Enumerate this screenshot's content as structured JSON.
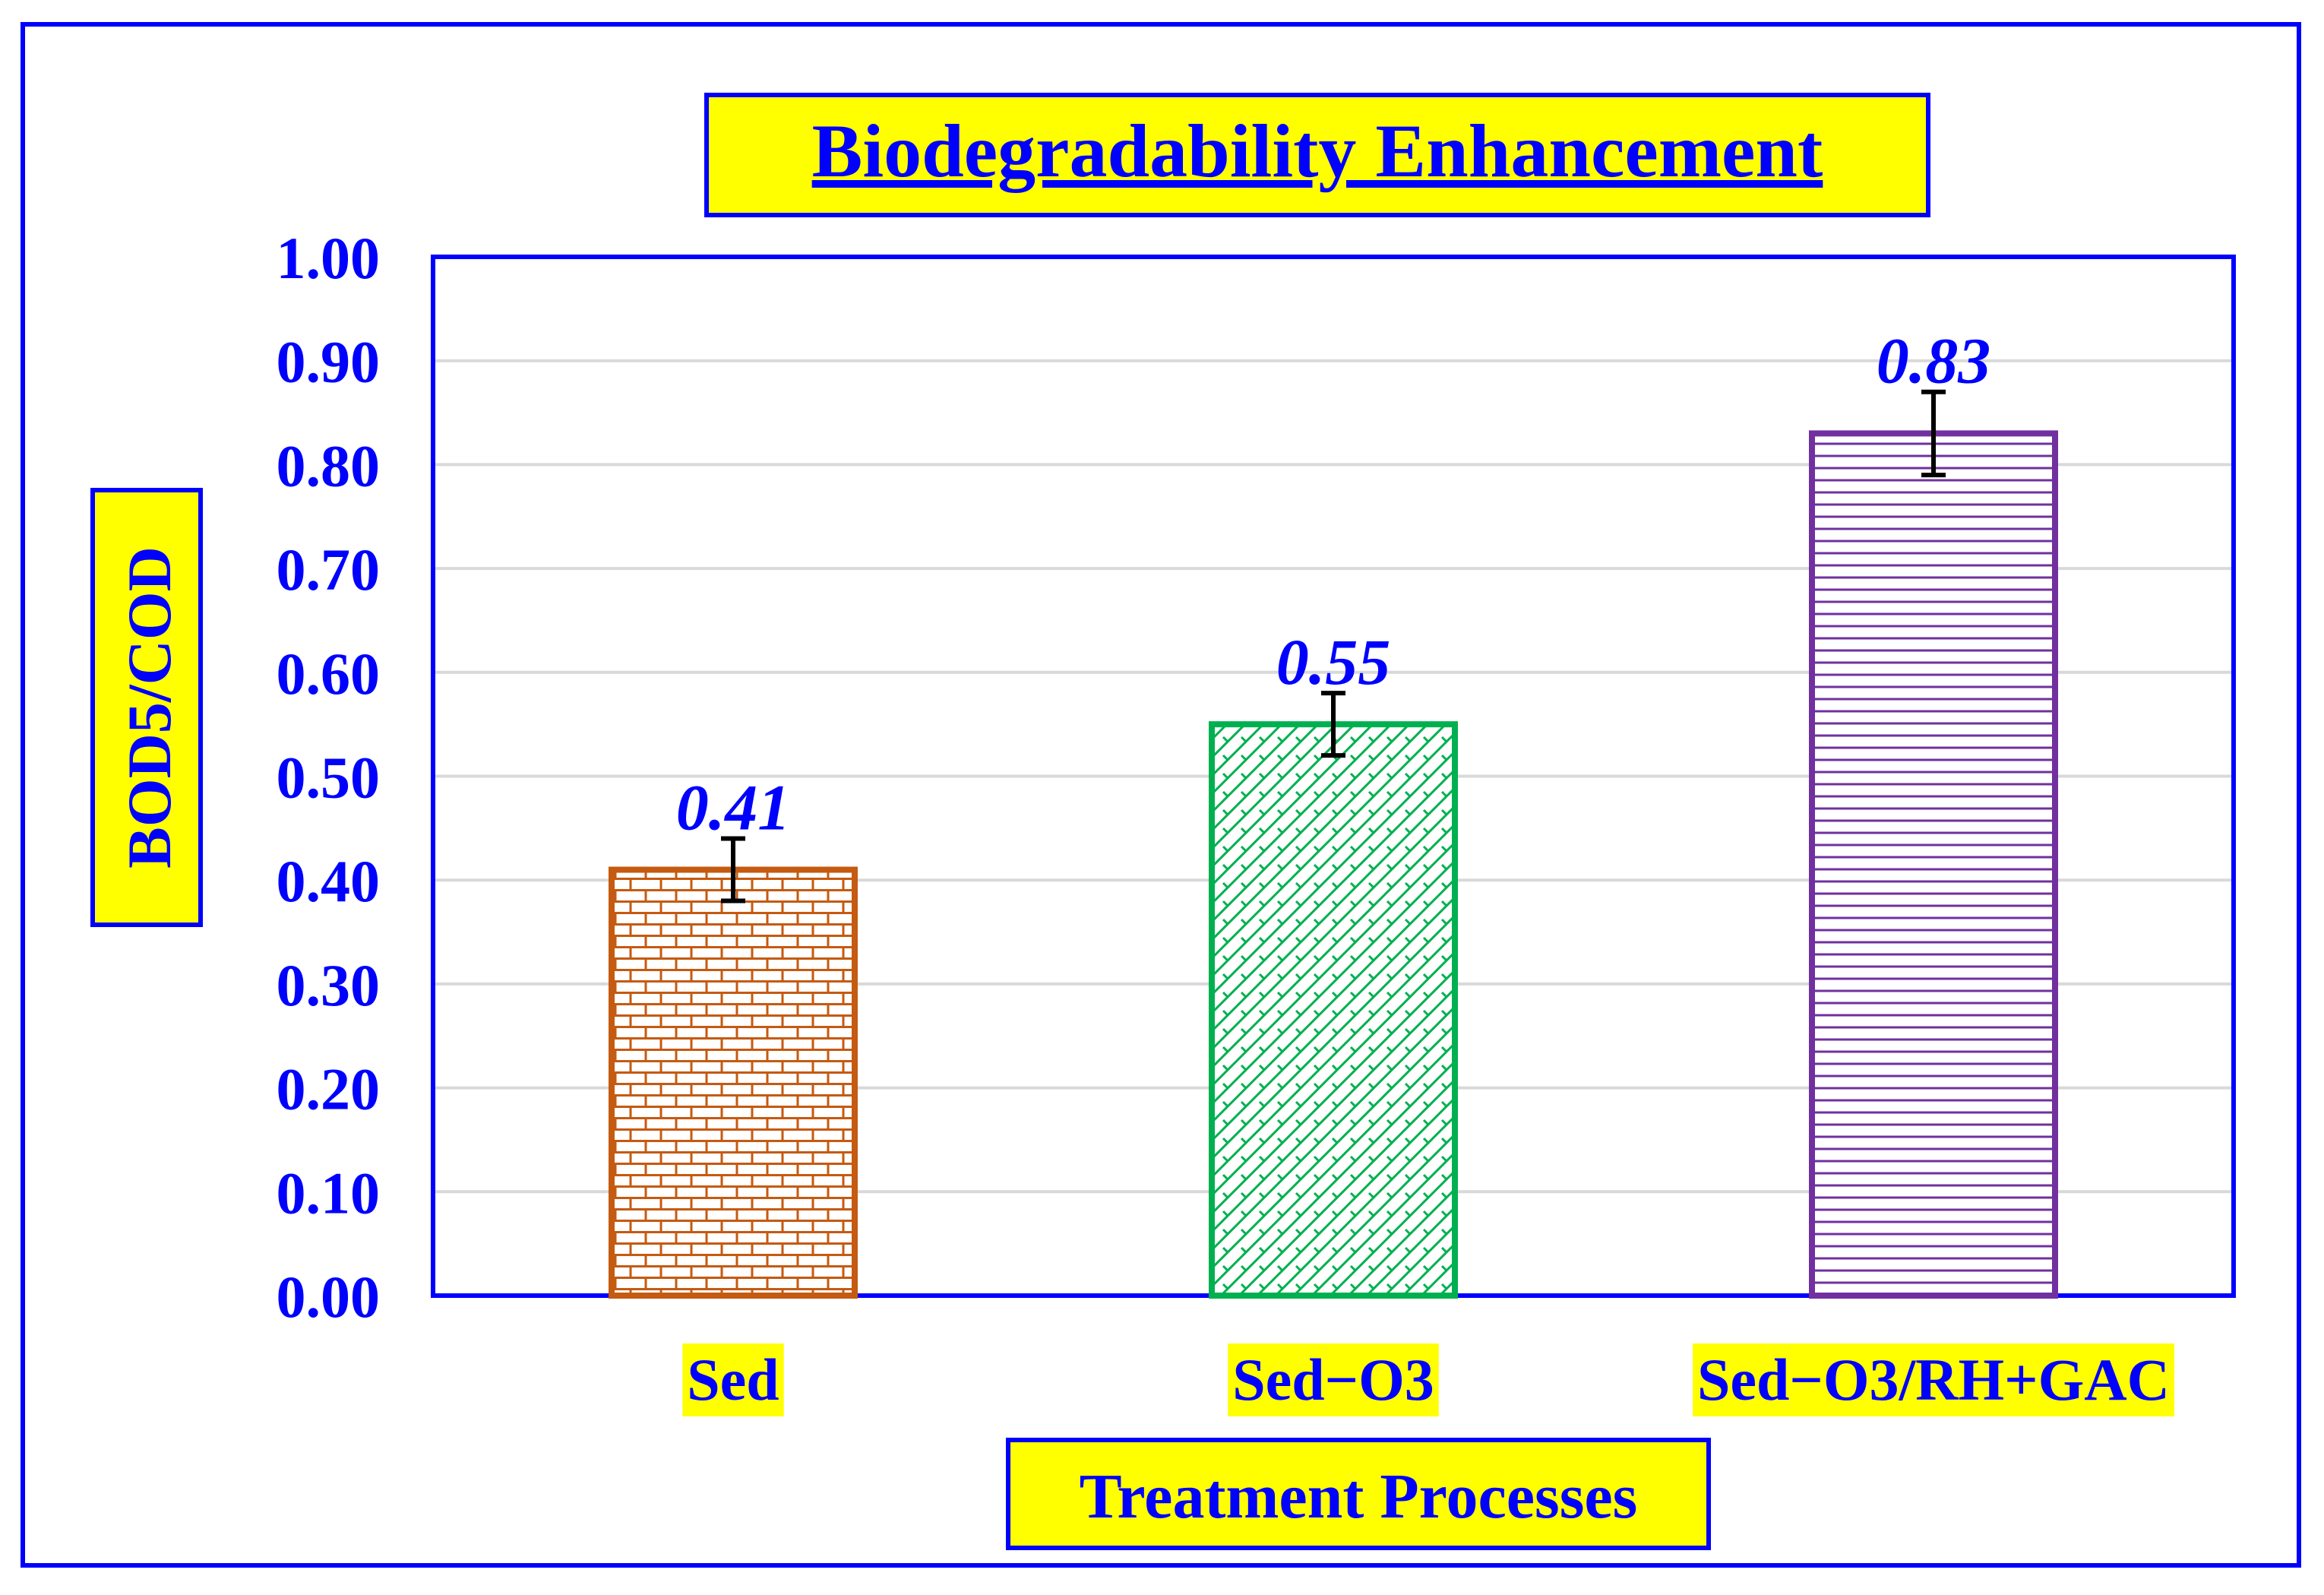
{
  "chart_data": {
    "type": "bar",
    "title": "Biodegradability Enhancement",
    "xlabel": "Treatment Processes",
    "ylabel": "BOD5/COD",
    "categories": [
      "Sed",
      "Sed−O3",
      "Sed−O3/RH+GAC"
    ],
    "values": [
      0.41,
      0.55,
      0.83
    ],
    "errors": [
      0.03,
      0.03,
      0.04
    ],
    "data_labels": [
      "0.41",
      "0.55",
      "0.83"
    ],
    "yticks": [
      "0.00",
      "0.10",
      "0.20",
      "0.30",
      "0.40",
      "0.50",
      "0.60",
      "0.70",
      "0.80",
      "0.90",
      "1.00"
    ],
    "ylim": [
      0,
      1
    ],
    "grid": true,
    "bar_colors": [
      "#C55A11",
      "#00B050",
      "#7030A0"
    ],
    "bar_patterns": [
      "brick",
      "zigzag-hatch",
      "horizontal-lines"
    ],
    "text_color": "#0000FF",
    "label_background": "#FFFF00",
    "frame_color": "#0000FF"
  }
}
